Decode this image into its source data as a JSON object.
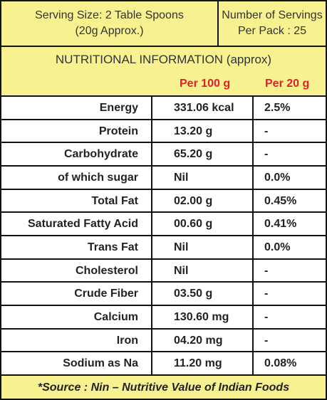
{
  "header": {
    "serving_size": [
      "Serving Size: 2 Table Spoons",
      "(20g Approx.)"
    ],
    "servings": [
      "Number of Servings",
      "Per Pack : 25"
    ]
  },
  "table": {
    "title": "NUTRITIONAL INFORMATION (approx)",
    "columns": [
      "Per 100 g",
      "Per 20 g"
    ],
    "rows": [
      [
        "Energy",
        "331.06 kcal",
        "2.5%"
      ],
      [
        "Protein",
        "13.20 g",
        "-"
      ],
      [
        "Carbohydrate",
        "65.20 g",
        "-"
      ],
      [
        "of which sugar",
        "Nil",
        "0.0%"
      ],
      [
        "Total Fat",
        "02.00 g",
        "0.45%"
      ],
      [
        "Saturated Fatty Acid",
        "00.60 g",
        "0.41%"
      ],
      [
        "Trans Fat",
        "Nil",
        "0.0%"
      ],
      [
        "Cholesterol",
        "Nil",
        "-"
      ],
      [
        "Crude Fiber",
        "03.50 g",
        "-"
      ],
      [
        "Calcium",
        "130.60 mg",
        "-"
      ],
      [
        "Iron",
        "04.20 mg",
        "-"
      ],
      [
        "Sodium as Na",
        "11.20 mg",
        "0.08%"
      ]
    ]
  },
  "footer": "*Source : Nin – Nutritive Value of Indian Foods"
}
